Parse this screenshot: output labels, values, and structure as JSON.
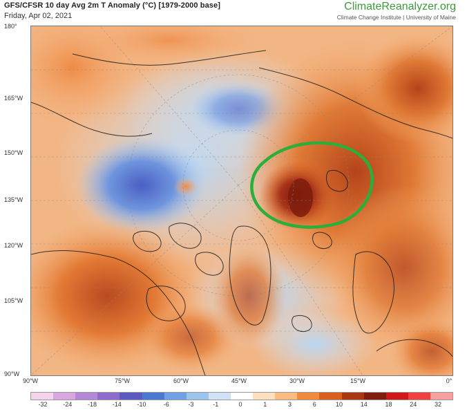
{
  "header": {
    "title": "GFS/CFSR 10 day Avg 2m T Anomaly (°C) [1979-2000 base]",
    "date": "Friday, Apr 02, 2021",
    "brand": "ClimateReanalyzer.org",
    "brand_sub": "Climate Change Institute | University of Maine"
  },
  "axes": {
    "lat_labels": [
      "180°",
      "165°W",
      "150°W",
      "135°W",
      "120°W",
      "105°W",
      "90°W"
    ],
    "lon_labels": [
      "90°W",
      "75°W",
      "60°W",
      "45°W",
      "30°W",
      "15°W",
      "0°"
    ]
  },
  "legend": {
    "labels": [
      "-32",
      "-24",
      "-18",
      "-14",
      "-10",
      "-6",
      "-3",
      "-1",
      "0",
      "1",
      "3",
      "6",
      "10",
      "14",
      "18",
      "24",
      "32"
    ],
    "colors": [
      "#f4d4ec",
      "#d9a6e0",
      "#b488d8",
      "#8d6ccc",
      "#5b5bbf",
      "#4a79d1",
      "#6fa1e4",
      "#9cc4ee",
      "#cfe2f6",
      "#ffffff",
      "#fde0bf",
      "#f9bb82",
      "#f08a3e",
      "#d8601d",
      "#a83812",
      "#7e1d0c",
      "#d01818",
      "#f04040",
      "#f7a0a0"
    ]
  },
  "annotation": {
    "shape": "green-ellipse",
    "color": "#2cae3a"
  }
}
